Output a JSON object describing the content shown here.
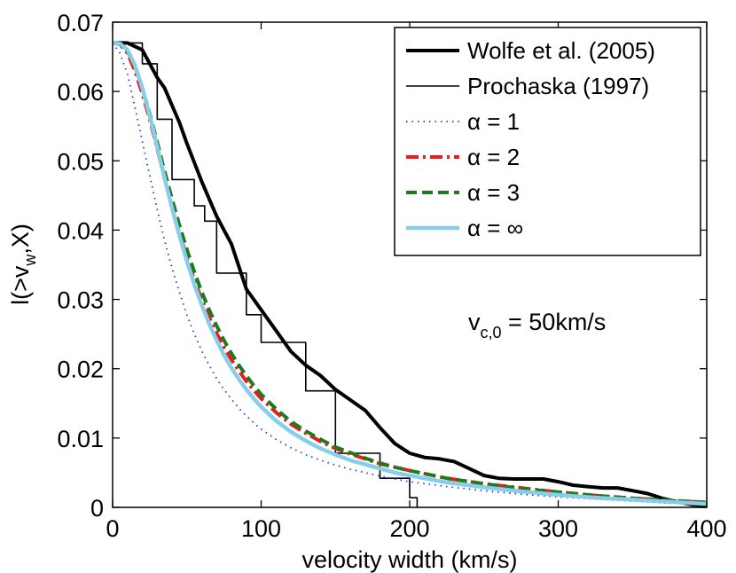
{
  "chart_data": {
    "type": "line",
    "title": "",
    "xlabel": "velocity width (km/s)",
    "ylabel": {
      "main": "l(>v",
      "sub": "w",
      "tail": ",X)"
    },
    "xlim": [
      0,
      400
    ],
    "ylim": [
      0,
      0.07
    ],
    "xticks": [
      0,
      100,
      200,
      300,
      400
    ],
    "xtick_labels": [
      "0",
      "100",
      "200",
      "300",
      "400"
    ],
    "yticks": [
      0,
      0.01,
      0.02,
      0.03,
      0.04,
      0.05,
      0.06,
      0.07
    ],
    "ytick_labels": [
      "0",
      "0.01",
      "0.02",
      "0.03",
      "0.04",
      "0.05",
      "0.06",
      "0.07"
    ],
    "grid": false,
    "legend": {
      "position": "top-right"
    },
    "annotation": {
      "main": "v",
      "sub": "c,0",
      "tail": " = 50km/s"
    },
    "series": [
      {
        "name": "Wolfe et al. (2005)",
        "color": "#000000",
        "width": 4,
        "dash": "",
        "x": [
          0,
          10,
          20,
          25,
          30,
          35,
          40,
          45,
          50,
          60,
          70,
          75,
          80,
          90,
          100,
          110,
          120,
          130,
          140,
          150,
          160,
          170,
          180,
          190,
          200,
          210,
          220,
          230,
          240,
          250,
          260,
          270,
          280,
          290,
          300,
          310,
          320,
          330,
          340,
          350,
          360,
          370,
          380,
          390,
          400
        ],
        "y": [
          0.067,
          0.067,
          0.066,
          0.064,
          0.062,
          0.0605,
          0.058,
          0.0555,
          0.0525,
          0.047,
          0.042,
          0.04,
          0.038,
          0.0315,
          0.0285,
          0.0255,
          0.0225,
          0.0205,
          0.019,
          0.017,
          0.0155,
          0.014,
          0.0115,
          0.0092,
          0.0078,
          0.0072,
          0.007,
          0.0066,
          0.0056,
          0.0046,
          0.0042,
          0.0041,
          0.0041,
          0.0041,
          0.0037,
          0.0032,
          0.003,
          0.0028,
          0.0028,
          0.0024,
          0.002,
          0.0013,
          0.0008,
          0.0004,
          0.0002
        ]
      },
      {
        "name": "Prochaska (1997)",
        "color": "#000000",
        "width": 1.6,
        "dash": "",
        "x": [
          0,
          20,
          20,
          30,
          30,
          40,
          40,
          55,
          55,
          62,
          62,
          70,
          70,
          90,
          90,
          100,
          100,
          110,
          110,
          130,
          130,
          150,
          150,
          180,
          180,
          200,
          200,
          205,
          205
        ],
        "y": [
          0.067,
          0.067,
          0.064,
          0.064,
          0.056,
          0.056,
          0.0473,
          0.0473,
          0.0435,
          0.0435,
          0.0413,
          0.0413,
          0.0338,
          0.0338,
          0.0278,
          0.0278,
          0.0238,
          0.0238,
          0.0238,
          0.0238,
          0.0168,
          0.0168,
          0.0078,
          0.0078,
          0.0042,
          0.0042,
          0.0014,
          0.0014,
          0
        ]
      },
      {
        "name": "α = 1",
        "color": "#1f3ad8",
        "width": 1.8,
        "dash": "1.5 5",
        "x": [
          0,
          5,
          10,
          15,
          20,
          25,
          30,
          35,
          40,
          45,
          50,
          55,
          60,
          65,
          70,
          75,
          80,
          85,
          90,
          95,
          100,
          110,
          120,
          130,
          140,
          150,
          160,
          170,
          180,
          190,
          200,
          225,
          250,
          275,
          300,
          325,
          350,
          375,
          400
        ],
        "y": [
          0.067,
          0.0655,
          0.0625,
          0.0578,
          0.0528,
          0.0478,
          0.043,
          0.0385,
          0.0345,
          0.031,
          0.0278,
          0.025,
          0.0226,
          0.0205,
          0.0186,
          0.017,
          0.0156,
          0.0143,
          0.0132,
          0.0122,
          0.0113,
          0.0098,
          0.0086,
          0.0076,
          0.0068,
          0.0061,
          0.0055,
          0.005,
          0.0045,
          0.0041,
          0.0037,
          0.003,
          0.0024,
          0.0019,
          0.0015,
          0.0012,
          0.0009,
          0.0006,
          0.0004
        ]
      },
      {
        "name": "α = 2",
        "color": "#ee1a1a",
        "width": 4,
        "dash": "14 5 3 5",
        "x": [
          0,
          5,
          10,
          15,
          20,
          25,
          30,
          35,
          40,
          45,
          50,
          55,
          60,
          65,
          70,
          75,
          80,
          85,
          90,
          95,
          100,
          110,
          120,
          130,
          140,
          150,
          160,
          170,
          180,
          190,
          200,
          225,
          250,
          275,
          300,
          325,
          350,
          375,
          400
        ],
        "y": [
          0.067,
          0.0668,
          0.0655,
          0.063,
          0.0597,
          0.056,
          0.0517,
          0.0474,
          0.0433,
          0.0395,
          0.036,
          0.0328,
          0.03,
          0.0274,
          0.0251,
          0.0231,
          0.0213,
          0.0197,
          0.0182,
          0.0169,
          0.0157,
          0.0137,
          0.012,
          0.0107,
          0.0095,
          0.0085,
          0.0077,
          0.007,
          0.0063,
          0.0058,
          0.0053,
          0.0042,
          0.0034,
          0.0028,
          0.0022,
          0.0017,
          0.0013,
          0.001,
          0.0007
        ]
      },
      {
        "name": "α = 3",
        "color": "#1d7a1d",
        "width": 4,
        "dash": "12 6",
        "x": [
          0,
          5,
          10,
          15,
          20,
          25,
          30,
          35,
          40,
          45,
          50,
          55,
          60,
          65,
          70,
          75,
          80,
          85,
          90,
          95,
          100,
          110,
          120,
          130,
          140,
          150,
          160,
          170,
          180,
          190,
          200,
          225,
          250,
          275,
          300,
          325,
          350,
          375,
          400
        ],
        "y": [
          0.067,
          0.0669,
          0.0658,
          0.0636,
          0.0605,
          0.0568,
          0.0527,
          0.0485,
          0.0445,
          0.0407,
          0.0372,
          0.034,
          0.0311,
          0.0285,
          0.0262,
          0.0241,
          0.0222,
          0.0205,
          0.019,
          0.0176,
          0.0163,
          0.0142,
          0.0124,
          0.011,
          0.0098,
          0.0087,
          0.0079,
          0.0071,
          0.0064,
          0.0058,
          0.0053,
          0.0042,
          0.0034,
          0.0027,
          0.0022,
          0.0017,
          0.0013,
          0.001,
          0.0007
        ]
      },
      {
        "name": "α = ∞",
        "color": "#87ceeb",
        "width": 4.5,
        "dash": "",
        "x": [
          0,
          5,
          10,
          15,
          20,
          25,
          30,
          35,
          40,
          45,
          50,
          55,
          60,
          65,
          70,
          75,
          80,
          85,
          90,
          95,
          100,
          110,
          120,
          130,
          140,
          150,
          160,
          170,
          180,
          190,
          200,
          225,
          250,
          275,
          300,
          325,
          350,
          375,
          400
        ],
        "y": [
          0.067,
          0.0669,
          0.066,
          0.0638,
          0.0605,
          0.0565,
          0.052,
          0.0475,
          0.0432,
          0.0392,
          0.0355,
          0.0322,
          0.0292,
          0.0265,
          0.0241,
          0.022,
          0.0201,
          0.0185,
          0.017,
          0.0157,
          0.0145,
          0.0125,
          0.0109,
          0.0096,
          0.0085,
          0.0076,
          0.0068,
          0.0062,
          0.0056,
          0.005,
          0.0046,
          0.0036,
          0.0029,
          0.0023,
          0.0018,
          0.0014,
          0.0011,
          0.0008,
          0.0005
        ]
      }
    ]
  }
}
